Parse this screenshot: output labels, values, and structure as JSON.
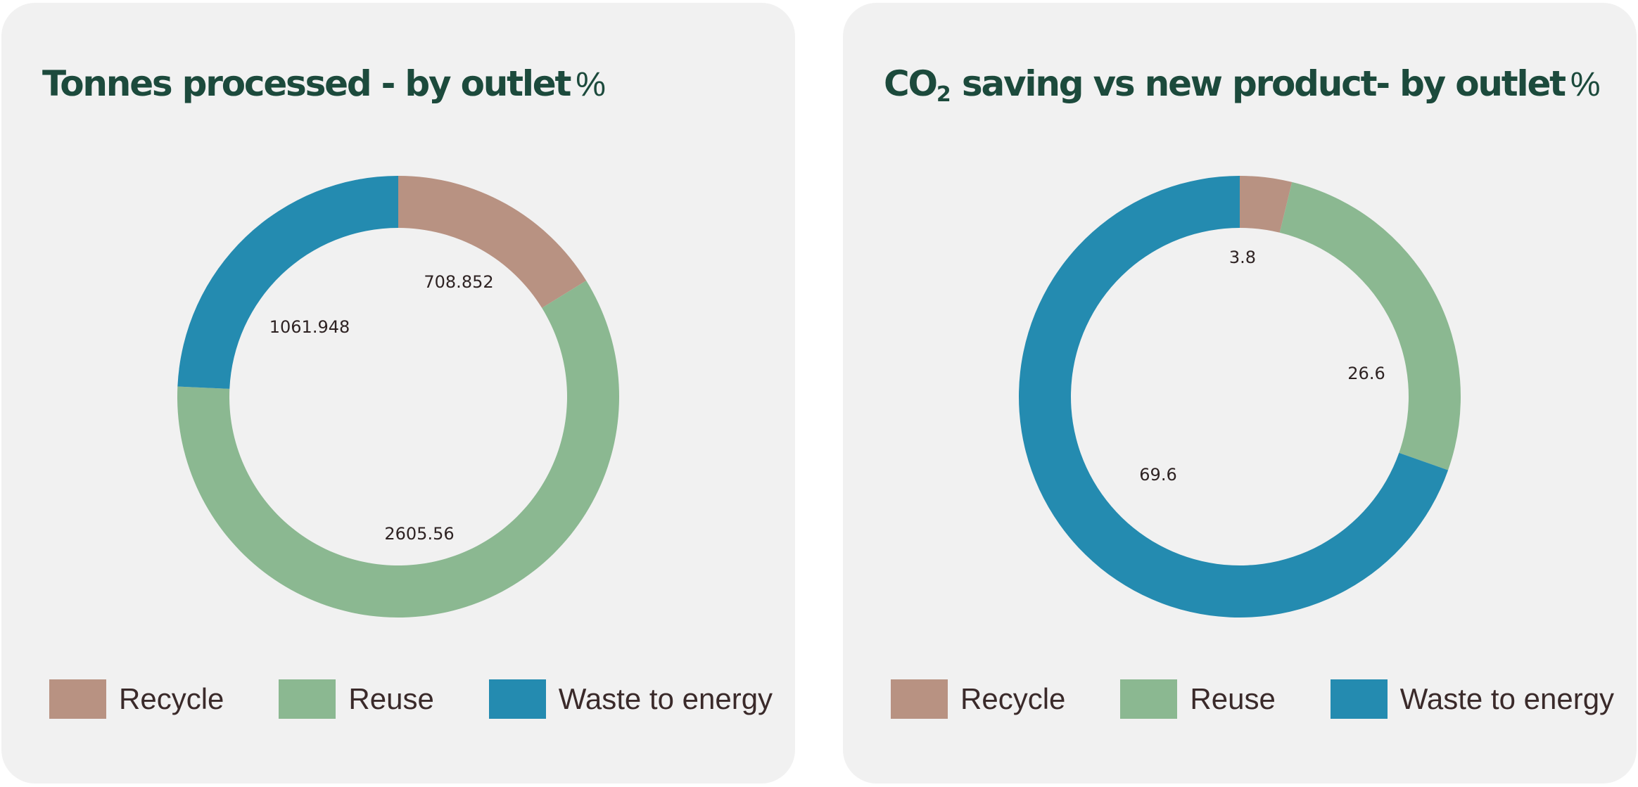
{
  "colors": {
    "recycle": "#b89282",
    "reuse": "#8bb891",
    "waste": "#248bb0",
    "title": "#1c4a3c"
  },
  "chart_data": [
    {
      "type": "pie",
      "title_main": "Tonnes processed - by outlet",
      "title_unit": "%",
      "categories": [
        "Recycle",
        "Reuse",
        "Waste to energy"
      ],
      "values": [
        708.852,
        2605.56,
        1061.948
      ],
      "labels": [
        "708.852",
        "2605.56",
        "1061.948"
      ],
      "legend": "bottom"
    },
    {
      "type": "pie",
      "title_pre": "CO",
      "title_sub": "2",
      "title_post": " saving vs new product- by outlet",
      "title_unit": "%",
      "categories": [
        "Recycle",
        "Reuse",
        "Waste to energy"
      ],
      "values": [
        3.8,
        26.6,
        69.6
      ],
      "labels": [
        "3.8",
        "26.6",
        "69.6"
      ],
      "legend": "bottom"
    }
  ]
}
